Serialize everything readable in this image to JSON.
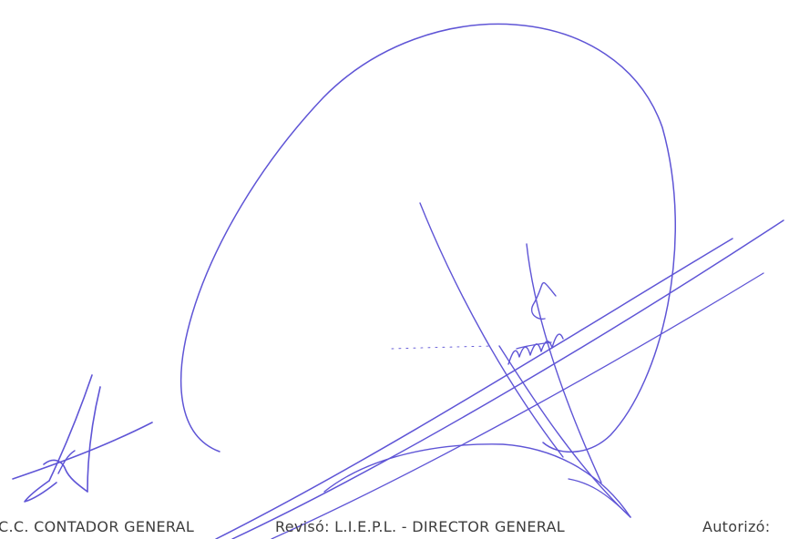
{
  "document": {
    "footer": {
      "left_caption": "C.C. CONTADOR GENERAL",
      "middle_caption": "Revisó: L.I.E.P.L. - DIRECTOR GENERAL",
      "right_caption": "Autorizó:"
    },
    "ink_color": "#5f55d6",
    "text_color": "#3d3d3d"
  }
}
